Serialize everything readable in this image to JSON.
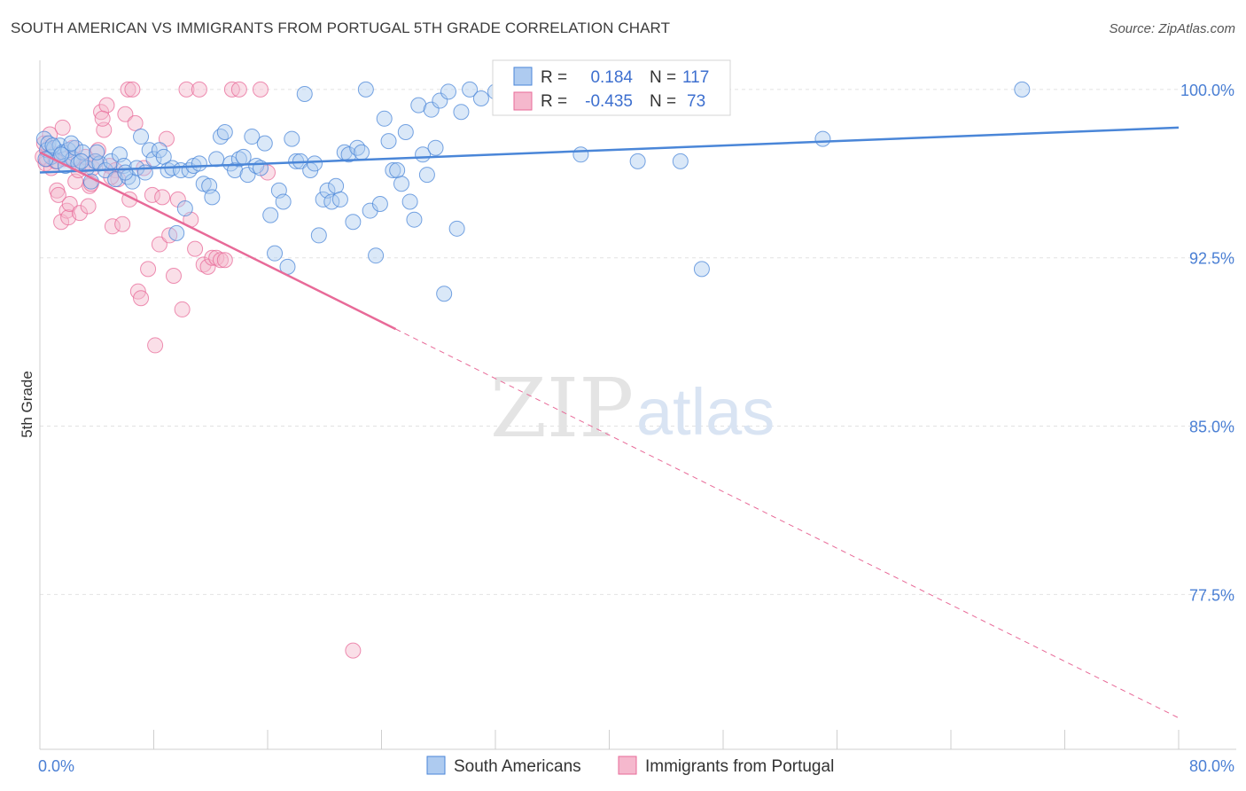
{
  "title": "SOUTH AMERICAN VS IMMIGRANTS FROM PORTUGAL 5TH GRADE CORRELATION CHART",
  "source": "Source: ZipAtlas.com",
  "watermark": {
    "zip": "ZIP",
    "atlas": "atlas"
  },
  "colors": {
    "blue": "#4a86d8",
    "blue_fill": "#aecbf0",
    "pink": "#e86a98",
    "pink_fill": "#f5b8cd",
    "grid": "#e2e2e2"
  },
  "chart_data": {
    "type": "scatter",
    "ylabel": "5th Grade",
    "xlim": [
      0,
      80
    ],
    "ylim": [
      70.6,
      101.3
    ],
    "x_tick_labels": [
      {
        "value": 0,
        "label": "0.0%"
      },
      {
        "value": 80,
        "label": "80.0%"
      }
    ],
    "y_tick_labels": [
      {
        "value": 100,
        "label": "100.0%"
      },
      {
        "value": 92.5,
        "label": "92.5%"
      },
      {
        "value": 85,
        "label": "85.0%"
      },
      {
        "value": 77.5,
        "label": "77.5%"
      }
    ],
    "legend": {
      "rows": [
        {
          "r_label": "R =",
          "r_value": "0.184",
          "n_label": "N =",
          "n_value": "117"
        },
        {
          "r_label": "R =",
          "r_value": "-0.435",
          "n_label": "N =",
          "n_value": "73"
        }
      ]
    },
    "series": [
      {
        "name": "South Americans",
        "trend": {
          "x0": 0,
          "y0": 96.3,
          "x1": 80,
          "y1": 98.3,
          "solid_until": 80
        },
        "points": [
          [
            0.3,
            97.8
          ],
          [
            0.5,
            97.3
          ],
          [
            0.6,
            97.6
          ],
          [
            0.8,
            97.0
          ],
          [
            1.0,
            97.4
          ],
          [
            1.2,
            96.8
          ],
          [
            1.4,
            97.5
          ],
          [
            1.6,
            97.2
          ],
          [
            1.8,
            96.6
          ],
          [
            2.0,
            97.3
          ],
          [
            2.3,
            96.9
          ],
          [
            2.5,
            97.4
          ],
          [
            2.7,
            96.7
          ],
          [
            3.0,
            97.2
          ],
          [
            3.3,
            96.5
          ],
          [
            3.6,
            95.9
          ],
          [
            3.9,
            96.8
          ],
          [
            4.2,
            96.7
          ],
          [
            4.6,
            96.4
          ],
          [
            5.0,
            96.8
          ],
          [
            5.3,
            96.0
          ],
          [
            5.6,
            97.1
          ],
          [
            5.9,
            96.6
          ],
          [
            6.2,
            96.1
          ],
          [
            6.5,
            95.9
          ],
          [
            6.8,
            96.5
          ],
          [
            7.1,
            97.9
          ],
          [
            7.4,
            96.3
          ],
          [
            7.7,
            97.3
          ],
          [
            8.0,
            96.9
          ],
          [
            8.4,
            97.3
          ],
          [
            8.7,
            97.0
          ],
          [
            9.0,
            96.4
          ],
          [
            9.3,
            96.5
          ],
          [
            9.6,
            93.6
          ],
          [
            9.9,
            96.4
          ],
          [
            10.2,
            94.7
          ],
          [
            10.5,
            96.4
          ],
          [
            10.8,
            96.6
          ],
          [
            11.2,
            96.7
          ],
          [
            11.5,
            95.8
          ],
          [
            11.9,
            95.7
          ],
          [
            12.1,
            95.2
          ],
          [
            12.4,
            96.9
          ],
          [
            12.7,
            97.9
          ],
          [
            13.0,
            98.1
          ],
          [
            13.4,
            96.7
          ],
          [
            13.7,
            96.4
          ],
          [
            14.0,
            96.9
          ],
          [
            14.3,
            97.0
          ],
          [
            14.6,
            96.2
          ],
          [
            14.9,
            97.9
          ],
          [
            15.2,
            96.6
          ],
          [
            15.5,
            96.5
          ],
          [
            15.8,
            97.6
          ],
          [
            16.2,
            94.4
          ],
          [
            16.5,
            92.7
          ],
          [
            16.8,
            95.5
          ],
          [
            17.1,
            95.0
          ],
          [
            17.4,
            92.1
          ],
          [
            17.7,
            97.8
          ],
          [
            18.0,
            96.8
          ],
          [
            18.3,
            96.8
          ],
          [
            18.6,
            99.8
          ],
          [
            19.0,
            96.4
          ],
          [
            19.3,
            96.7
          ],
          [
            19.6,
            93.5
          ],
          [
            19.9,
            95.1
          ],
          [
            20.2,
            95.5
          ],
          [
            20.5,
            95.0
          ],
          [
            20.8,
            95.7
          ],
          [
            21.1,
            95.1
          ],
          [
            21.4,
            97.2
          ],
          [
            21.7,
            97.1
          ],
          [
            22.0,
            94.1
          ],
          [
            22.3,
            97.4
          ],
          [
            22.6,
            97.2
          ],
          [
            22.9,
            100.0
          ],
          [
            23.2,
            94.6
          ],
          [
            23.6,
            92.6
          ],
          [
            23.9,
            94.9
          ],
          [
            24.2,
            98.7
          ],
          [
            24.5,
            97.7
          ],
          [
            24.8,
            96.4
          ],
          [
            25.1,
            96.4
          ],
          [
            25.4,
            95.8
          ],
          [
            25.7,
            98.1
          ],
          [
            26.0,
            95.0
          ],
          [
            26.3,
            94.2
          ],
          [
            26.6,
            99.3
          ],
          [
            26.9,
            97.1
          ],
          [
            27.2,
            96.2
          ],
          [
            27.5,
            99.1
          ],
          [
            27.8,
            97.4
          ],
          [
            28.1,
            99.5
          ],
          [
            28.4,
            90.9
          ],
          [
            28.7,
            99.9
          ],
          [
            29.3,
            93.8
          ],
          [
            29.6,
            99.0
          ],
          [
            30.2,
            100.0
          ],
          [
            31.0,
            99.6
          ],
          [
            32.0,
            99.9
          ],
          [
            34.0,
            99.8
          ],
          [
            36.0,
            99.5
          ],
          [
            38.0,
            97.1
          ],
          [
            42.0,
            96.8
          ],
          [
            45.0,
            96.8
          ],
          [
            46.5,
            92.0
          ],
          [
            55.0,
            97.8
          ],
          [
            69.0,
            100.0
          ],
          [
            0.4,
            96.9
          ],
          [
            0.9,
            97.5
          ],
          [
            1.5,
            97.1
          ],
          [
            2.2,
            97.6
          ],
          [
            2.9,
            96.8
          ],
          [
            4.0,
            97.2
          ],
          [
            6.0,
            96.3
          ]
        ]
      },
      {
        "name": "Immigrants from Portugal",
        "trend": {
          "x0": 0,
          "y0": 97.2,
          "x1": 80,
          "y1": 72.0,
          "solid_until": 25
        },
        "points": [
          [
            0.2,
            97.0
          ],
          [
            0.4,
            96.7
          ],
          [
            0.6,
            97.4
          ],
          [
            0.8,
            96.5
          ],
          [
            1.0,
            97.1
          ],
          [
            1.2,
            95.5
          ],
          [
            1.3,
            95.3
          ],
          [
            1.5,
            94.1
          ],
          [
            1.7,
            96.9
          ],
          [
            1.9,
            94.6
          ],
          [
            2.0,
            94.3
          ],
          [
            2.1,
            94.9
          ],
          [
            2.3,
            97.4
          ],
          [
            2.5,
            95.9
          ],
          [
            2.7,
            96.4
          ],
          [
            2.8,
            94.5
          ],
          [
            3.0,
            96.6
          ],
          [
            3.2,
            97.0
          ],
          [
            3.4,
            94.8
          ],
          [
            3.5,
            95.7
          ],
          [
            3.7,
            96.5
          ],
          [
            3.9,
            96.8
          ],
          [
            4.1,
            97.3
          ],
          [
            4.3,
            99.0
          ],
          [
            4.5,
            98.2
          ],
          [
            4.7,
            99.3
          ],
          [
            4.9,
            96.6
          ],
          [
            5.1,
            93.9
          ],
          [
            5.3,
            96.4
          ],
          [
            5.5,
            96.0
          ],
          [
            5.8,
            94.0
          ],
          [
            6.0,
            98.9
          ],
          [
            6.2,
            100.0
          ],
          [
            6.3,
            95.1
          ],
          [
            6.5,
            100.0
          ],
          [
            6.7,
            98.5
          ],
          [
            6.9,
            91.0
          ],
          [
            7.1,
            90.7
          ],
          [
            7.3,
            96.5
          ],
          [
            7.6,
            92.0
          ],
          [
            7.9,
            95.3
          ],
          [
            8.1,
            88.6
          ],
          [
            8.4,
            93.1
          ],
          [
            8.6,
            95.2
          ],
          [
            8.9,
            97.8
          ],
          [
            9.1,
            93.5
          ],
          [
            9.4,
            91.7
          ],
          [
            9.7,
            95.1
          ],
          [
            10.0,
            90.2
          ],
          [
            10.3,
            100.0
          ],
          [
            10.6,
            94.2
          ],
          [
            10.9,
            92.9
          ],
          [
            11.2,
            100.0
          ],
          [
            11.5,
            92.2
          ],
          [
            11.8,
            92.1
          ],
          [
            12.1,
            92.5
          ],
          [
            12.4,
            92.5
          ],
          [
            12.7,
            92.4
          ],
          [
            13.0,
            92.4
          ],
          [
            13.5,
            100.0
          ],
          [
            14.0,
            100.0
          ],
          [
            15.5,
            100.0
          ],
          [
            16.0,
            96.3
          ],
          [
            22.0,
            75.0
          ],
          [
            0.3,
            97.6
          ],
          [
            0.5,
            96.9
          ],
          [
            0.7,
            98.0
          ],
          [
            1.1,
            96.8
          ],
          [
            1.6,
            98.3
          ],
          [
            2.4,
            96.9
          ],
          [
            3.6,
            95.8
          ],
          [
            4.4,
            98.7
          ],
          [
            5.0,
            96.1
          ]
        ]
      }
    ],
    "bottom_legend": [
      "South Americans",
      "Immigrants from Portugal"
    ]
  }
}
